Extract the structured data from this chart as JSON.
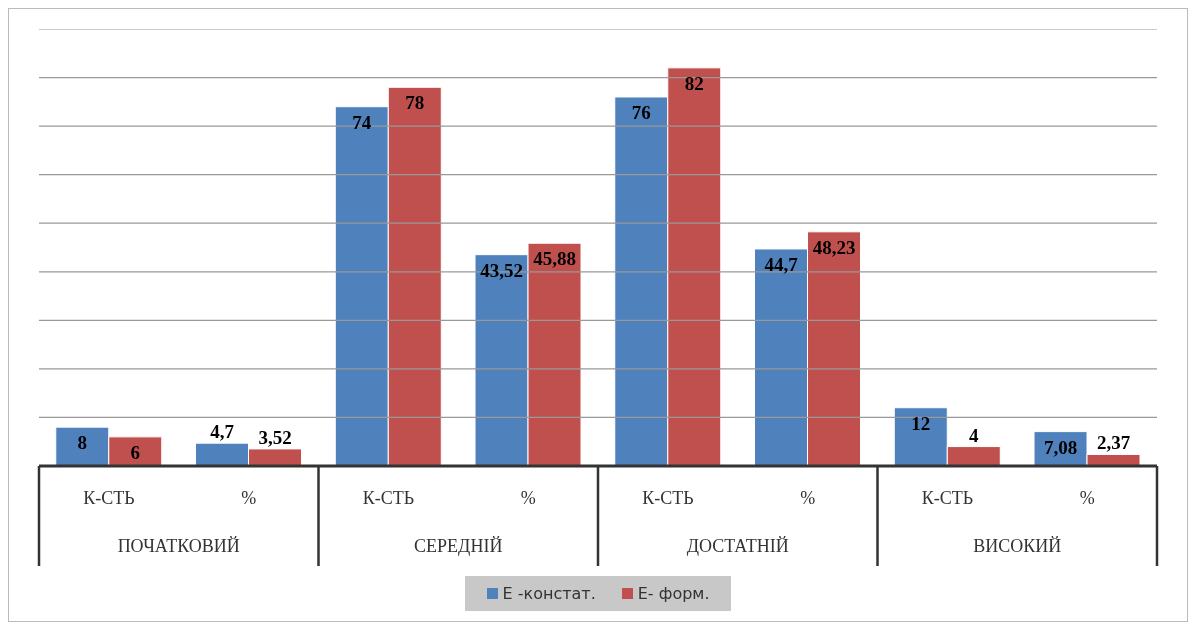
{
  "chart_data": {
    "type": "bar",
    "categories": [
      "К-СТЬ",
      "%",
      "К-СТЬ",
      "%",
      "К-СТЬ",
      "%",
      "К-СТЬ",
      "%"
    ],
    "annotations": [
      "ПОЧАТКОВИЙ",
      "СЕРЕДНІЙ",
      "ДОСТАТНІЙ",
      "ВИСОКИЙ"
    ],
    "series": [
      {
        "name": "Е -констат.",
        "color": "#4f81bd",
        "values": [
          8,
          4.7,
          74,
          43.52,
          76,
          44.7,
          12,
          7.08
        ],
        "value_labels": [
          "8",
          "4,7",
          "74",
          "43,52",
          "76",
          "44,7",
          "12",
          "7,08"
        ]
      },
      {
        "name": "Е- форм.",
        "color": "#c0504d",
        "values": [
          6,
          3.52,
          78,
          45.88,
          82,
          48.23,
          4,
          2.37
        ],
        "value_labels": [
          "6",
          "3,52",
          "78",
          "45,88",
          "82",
          "48,23",
          "4",
          "2,37"
        ]
      }
    ],
    "ylim": [
      0,
      90
    ],
    "yticks": [
      {
        "value": 0,
        "label": null
      },
      {
        "value": 10,
        "label": null
      },
      {
        "value": 20,
        "label": null
      },
      {
        "value": 30,
        "label": null
      },
      {
        "value": 40,
        "label": null
      },
      {
        "value": 50,
        "label": null
      },
      {
        "value": 60,
        "label": null
      },
      {
        "value": 70,
        "label": null
      },
      {
        "value": 80,
        "label": null
      },
      {
        "value": 90,
        "label": null
      }
    ],
    "tick_labels": "x",
    "grid": "y",
    "legend": "bottom"
  }
}
